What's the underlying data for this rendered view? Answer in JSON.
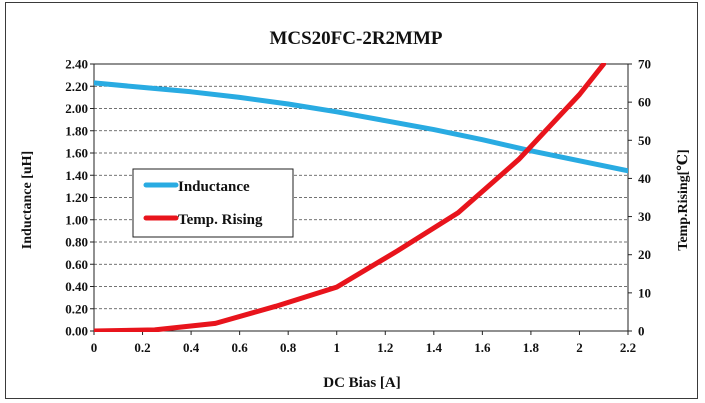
{
  "chart_data": {
    "type": "line",
    "title": "MCS20FC-2R2MMP",
    "xlabel": "DC Bias [A]",
    "ylabel": "Inductance [uH]",
    "y2label": "Temp.Rising[℃]",
    "xlim": [
      0,
      2.2
    ],
    "ylim": [
      0,
      2.4
    ],
    "y2lim": [
      0,
      70
    ],
    "x_ticks": [
      "0",
      "0.2",
      "0.4",
      "0.6",
      "0.8",
      "1",
      "1.2",
      "1.4",
      "1.6",
      "1.8",
      "2",
      "2.2"
    ],
    "y_ticks": [
      "0.00",
      "0.20",
      "0.40",
      "0.60",
      "0.80",
      "1.00",
      "1.20",
      "1.40",
      "1.60",
      "1.80",
      "2.00",
      "2.20",
      "2.40"
    ],
    "y2_ticks": [
      "0",
      "10",
      "20",
      "30",
      "40",
      "50",
      "60",
      "70"
    ],
    "grid": "horizontal dashed",
    "legend_position": "left-middle",
    "series": [
      {
        "name": "Inductance",
        "axis": "left",
        "color": "#29abe2",
        "x": [
          0,
          0.2,
          0.4,
          0.6,
          0.8,
          1.0,
          1.2,
          1.4,
          1.6,
          1.8,
          2.0,
          2.2
        ],
        "y": [
          2.23,
          2.19,
          2.15,
          2.1,
          2.04,
          1.97,
          1.89,
          1.81,
          1.72,
          1.62,
          1.53,
          1.44
        ]
      },
      {
        "name": "Temp. Rising",
        "axis": "right",
        "color": "#e8141c",
        "x": [
          0,
          0.25,
          0.5,
          0.75,
          1.0,
          1.25,
          1.5,
          1.75,
          2.0,
          2.1
        ],
        "y": [
          0,
          0.3,
          2,
          6.5,
          11.5,
          21,
          31,
          45,
          62,
          70
        ]
      }
    ]
  }
}
